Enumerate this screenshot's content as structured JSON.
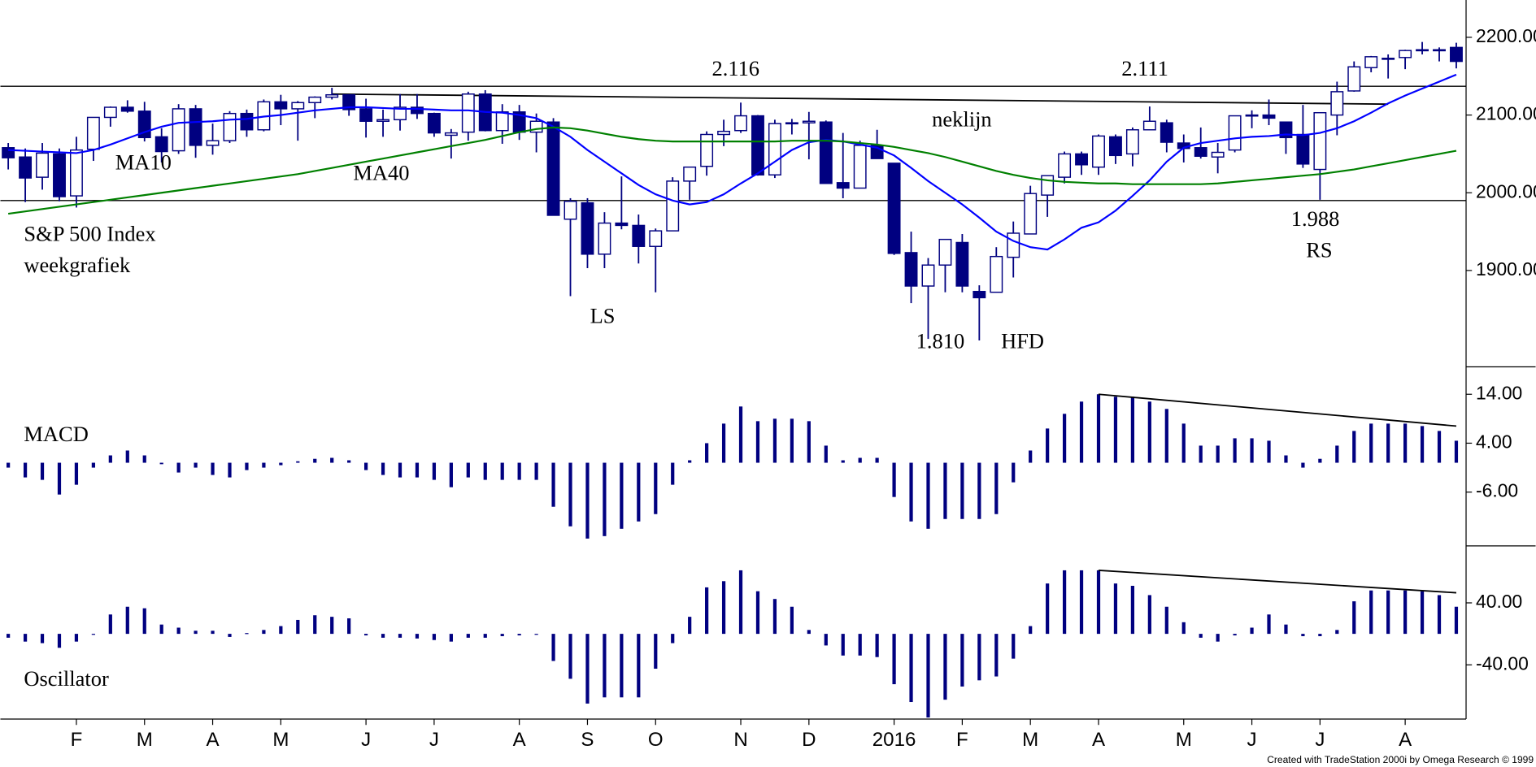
{
  "chart_data": [
    {
      "type": "candlestick",
      "categories": [
        null,
        null,
        null,
        null,
        "F",
        null,
        null,
        null,
        "M",
        null,
        null,
        null,
        "A",
        null,
        null,
        null,
        "M",
        null,
        null,
        null,
        null,
        "J",
        null,
        null,
        null,
        "J",
        null,
        null,
        null,
        null,
        "A",
        null,
        null,
        null,
        "S",
        null,
        null,
        null,
        "O",
        null,
        null,
        null,
        null,
        "N",
        null,
        null,
        null,
        "D",
        null,
        null,
        null,
        null,
        "2016",
        null,
        null,
        null,
        "F",
        null,
        null,
        null,
        "M",
        null,
        null,
        null,
        "A",
        null,
        null,
        null,
        null,
        "M",
        null,
        null,
        null,
        "J",
        null,
        null,
        null,
        "J",
        null,
        null,
        null,
        null,
        "A",
        null,
        null,
        null
      ],
      "open": [
        2058,
        2046,
        2020,
        2050,
        1996,
        2056,
        2097,
        2110,
        2105,
        2072,
        2054,
        2108,
        2061,
        2067,
        2102,
        2081,
        2117,
        2108,
        2116,
        2123,
        2126,
        2108,
        2092,
        2094,
        2110,
        2102,
        2074,
        2078,
        2127,
        2080,
        2104,
        2078,
        2091,
        1966,
        1987,
        1921,
        1961,
        1958,
        1931,
        1951,
        2015,
        2034,
        2075,
        2080,
        2099,
        2023,
        2089,
        2090,
        2091,
        2013,
        2006,
        2061,
        2038,
        1923,
        1880,
        1907,
        1936,
        1873,
        1872,
        1917,
        1947,
        1997,
        2020,
        2050,
        2033,
        2072,
        2050,
        2081,
        2090,
        2064,
        2058,
        2046,
        2055,
        2100,
        2100,
        2091,
        2075,
        2030,
        2100,
        2131,
        2161,
        2173,
        2174,
        2183,
        2184,
        2187
      ],
      "high": [
        2064,
        2057,
        2064,
        2057,
        2072,
        2097,
        2111,
        2119,
        2117,
        2083,
        2114,
        2113,
        2089,
        2105,
        2107,
        2120,
        2126,
        2118,
        2124,
        2135,
        2126,
        2121,
        2107,
        2127,
        2127,
        2103,
        2082,
        2130,
        2132,
        2114,
        2113,
        2102,
        2096,
        1993,
        1993,
        1975,
        2021,
        1972,
        1954,
        2020,
        2033,
        2079,
        2094,
        2116,
        2100,
        2094,
        2095,
        2104,
        2093,
        2077,
        2067,
        2081,
        2038,
        1950,
        1916,
        1940,
        1947,
        1881,
        1930,
        1963,
        2009,
        2022,
        2053,
        2053,
        2075,
        2075,
        2084,
        2111,
        2094,
        2075,
        2084,
        2064,
        2099,
        2106,
        2120,
        2091,
        2113,
        2103,
        2143,
        2169,
        2176,
        2178,
        2184,
        2194,
        2187,
        2193
      ],
      "low": [
        2030,
        1988,
        2004,
        1989,
        1981,
        2041,
        2085,
        2103,
        2066,
        2039,
        2050,
        2045,
        2049,
        2064,
        2072,
        2079,
        2087,
        2067,
        2096,
        2120,
        2099,
        2071,
        2072,
        2080,
        2095,
        2072,
        2044,
        2067,
        2079,
        2063,
        2068,
        2052,
        1971,
        1867,
        1903,
        1903,
        1953,
        1909,
        1872,
        1951,
        1991,
        2022,
        2060,
        2077,
        2022,
        2019,
        2075,
        2043,
        2012,
        1993,
        2006,
        2044,
        1920,
        1858,
        1812,
        1872,
        1872,
        1810,
        1872,
        1891,
        1947,
        1969,
        2012,
        2023,
        2023,
        2037,
        2034,
        2081,
        2052,
        2039,
        2044,
        2025,
        2052,
        2083,
        2087,
        2050,
        2032,
        1991,
        2074,
        2130,
        2155,
        2147,
        2159,
        2178,
        2169,
        2160
      ],
      "close": [
        2045,
        2019,
        2051,
        1995,
        2055,
        2097,
        2110,
        2105,
        2071,
        2053,
        2108,
        2061,
        2067,
        2102,
        2081,
        2117,
        2108,
        2116,
        2123,
        2126,
        2107,
        2092,
        2094,
        2110,
        2102,
        2077,
        2077,
        2127,
        2080,
        2104,
        2078,
        2092,
        1971,
        1989,
        1921,
        1961,
        1958,
        1931,
        1951,
        2015,
        2033,
        2075,
        2079,
        2099,
        2023,
        2089,
        2090,
        2092,
        2012,
        2006,
        2061,
        2044,
        1922,
        1880,
        1907,
        1940,
        1880,
        1865,
        1918,
        1948,
        1999,
        2022,
        2050,
        2036,
        2073,
        2048,
        2081,
        2092,
        2065,
        2057,
        2047,
        2052,
        2099,
        2099,
        2096,
        2071,
        2037,
        2103,
        2130,
        2162,
        2175,
        2173,
        2183,
        2184,
        2184,
        2169
      ],
      "color": "#000080",
      "series": [
        {
          "name": "MA10",
          "color": "#0000ff",
          "values": [
            2055,
            2054,
            2053,
            2052,
            2051,
            2055,
            2062,
            2070,
            2078,
            2085,
            2090,
            2091,
            2092,
            2094,
            2095,
            2098,
            2100,
            2103,
            2106,
            2108,
            2110,
            2110,
            2109,
            2108,
            2108,
            2107,
            2106,
            2106,
            2104,
            2103,
            2100,
            2096,
            2085,
            2072,
            2055,
            2040,
            2025,
            2010,
            1998,
            1990,
            1985,
            1988,
            1998,
            2012,
            2025,
            2040,
            2055,
            2065,
            2068,
            2066,
            2062,
            2058,
            2048,
            2032,
            2015,
            2000,
            1985,
            1968,
            1950,
            1938,
            1930,
            1927,
            1940,
            1955,
            1962,
            1977,
            1996,
            2016,
            2040,
            2058,
            2064,
            2067,
            2070,
            2072,
            2073,
            2075,
            2074,
            2077,
            2083,
            2092,
            2103,
            2115,
            2125,
            2134,
            2143,
            2152
          ]
        },
        {
          "name": "MA40",
          "color": "#008000",
          "values": [
            1973,
            1976,
            1979,
            1982,
            1985,
            1988,
            1991,
            1994,
            1997,
            2000,
            2003,
            2006,
            2009,
            2012,
            2015,
            2018,
            2021,
            2024,
            2028,
            2032,
            2036,
            2040,
            2044,
            2048,
            2052,
            2056,
            2060,
            2064,
            2068,
            2073,
            2078,
            2082,
            2084,
            2083,
            2080,
            2076,
            2072,
            2069,
            2067,
            2066,
            2066,
            2066,
            2066,
            2066,
            2066,
            2066,
            2067,
            2067,
            2067,
            2066,
            2064,
            2062,
            2059,
            2055,
            2051,
            2046,
            2040,
            2034,
            2028,
            2023,
            2019,
            2016,
            2014,
            2013,
            2012,
            2012,
            2011,
            2011,
            2011,
            2011,
            2011,
            2012,
            2014,
            2016,
            2018,
            2020,
            2022,
            2024,
            2027,
            2030,
            2034,
            2038,
            2042,
            2046,
            2050,
            2054
          ]
        }
      ],
      "hlines": [
        2137,
        1990
      ],
      "neckline": [
        2127,
        2114
      ],
      "annotations": [
        "2.116",
        "2.111",
        "neklijn",
        "S&P 500 Index",
        "weekgrafiek",
        "LS",
        "1.810",
        "HFD",
        "1.988",
        "RS"
      ],
      "ylim": [
        1776,
        2248
      ],
      "yticks": [
        {
          "value": 2200,
          "label": "2200.00"
        },
        {
          "value": 2100,
          "label": "2100.00"
        },
        {
          "value": 2000,
          "label": "2000.00"
        },
        {
          "value": 1900,
          "label": "1900.00"
        }
      ]
    },
    {
      "type": "bar",
      "title": "MACD",
      "color": "#000080",
      "values": [
        -1,
        -3,
        -3.5,
        -6.5,
        -4.5,
        -1,
        1.5,
        2.5,
        1.5,
        -0.3,
        -2,
        -1,
        -2.5,
        -3,
        -1.5,
        -1,
        -0.5,
        0.3,
        0.8,
        1,
        0.5,
        -1.5,
        -2.5,
        -3,
        -3,
        -3.5,
        -5,
        -3,
        -3.5,
        -3.5,
        -3.5,
        -3.5,
        -9,
        -13,
        -15.5,
        -15,
        -13.5,
        -12,
        -10.5,
        -4.5,
        0.5,
        4,
        8,
        11.5,
        8.5,
        9,
        9,
        8.5,
        3.5,
        0.5,
        1,
        1,
        -7,
        -12,
        -13.5,
        -11.5,
        -11.5,
        -11.5,
        -10.5,
        -4,
        2.5,
        7,
        10,
        12.5,
        14,
        13.5,
        13.5,
        12.5,
        11,
        8,
        3.5,
        3.5,
        5,
        5,
        4.5,
        1.5,
        -1,
        0.8,
        3.5,
        6.5,
        8,
        8,
        8,
        7.5,
        6.5,
        4.5
      ],
      "trendline": [
        14,
        7.5
      ],
      "ylim": [
        -17.4,
        19.6
      ],
      "yticks": [
        {
          "value": 14,
          "label": "14.00"
        },
        {
          "value": 4,
          "label": "4.00"
        },
        {
          "value": -6,
          "label": "-6.00"
        }
      ]
    },
    {
      "type": "bar",
      "title": "Oscillator",
      "color": "#000080",
      "values": [
        -5,
        -10,
        -12,
        -18,
        -10,
        0,
        25,
        35,
        33,
        12,
        8,
        4,
        4,
        -4,
        1,
        5,
        10,
        18,
        24,
        22,
        20,
        -2,
        -5,
        -5,
        -6,
        -8,
        -10,
        -5,
        -5,
        -3,
        -2,
        -1,
        -35,
        -58,
        -90,
        -82,
        -82,
        -82,
        -45,
        -12,
        22,
        60,
        68,
        82,
        55,
        45,
        35,
        5,
        -15,
        -28,
        -28,
        -30,
        -65,
        -88,
        -108,
        -85,
        -68,
        -60,
        -55,
        -32,
        10,
        65,
        82,
        82,
        82,
        65,
        62,
        50,
        35,
        15,
        -5,
        -10,
        -2,
        8,
        25,
        12,
        -3,
        -3,
        5,
        42,
        56,
        56,
        56,
        55,
        50,
        35
      ],
      "trendline": [
        82,
        53
      ],
      "ylim": [
        -110,
        111
      ],
      "yticks": [
        {
          "value": 40,
          "label": "40.00"
        },
        {
          "value": -40,
          "label": "-40.00"
        }
      ]
    }
  ],
  "footer": "Created with TradeStation 2000i by Omega Research © 1999"
}
